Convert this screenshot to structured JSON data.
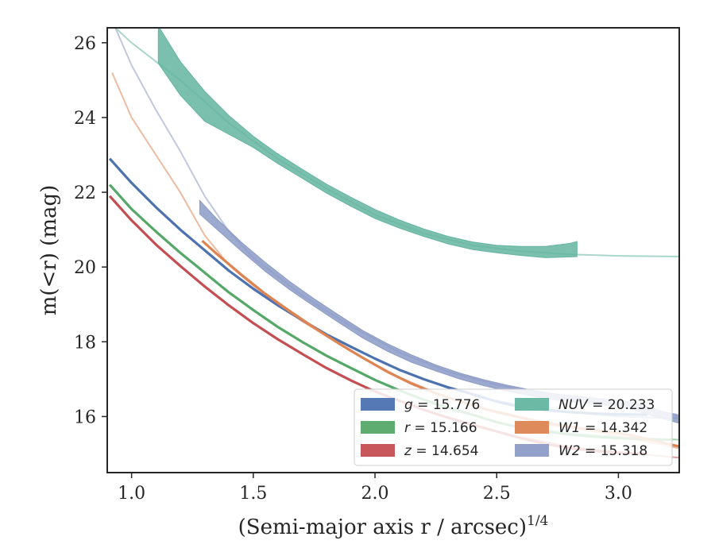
{
  "chart_data": {
    "type": "line",
    "title": "",
    "xlabel": "(Semi-major axis r / arcsec)",
    "xlabel_exponent": "1/4",
    "ylabel": "m(<r) (mag)",
    "xlim": [
      0.9,
      3.25
    ],
    "ylim": [
      26.4,
      14.5
    ],
    "y_inverted": true,
    "x_ticks": [
      1.0,
      1.5,
      2.0,
      2.5,
      3.0
    ],
    "x_tick_labels": [
      "1.0",
      "1.5",
      "2.0",
      "2.5",
      "3.0"
    ],
    "y_ticks": [
      16,
      18,
      20,
      22,
      24,
      26
    ],
    "y_tick_labels": [
      "16",
      "18",
      "20",
      "22",
      "24",
      "26"
    ],
    "grid": false,
    "legend_position": "lower-right",
    "series": [
      {
        "name": "g = 15.776",
        "legend_var": "g",
        "legend_val": "15.776",
        "color": "#4C72B0",
        "data": [
          [
            0.91,
            22.9
          ],
          [
            1.0,
            22.25
          ],
          [
            1.1,
            21.6
          ],
          [
            1.2,
            21.0
          ],
          [
            1.3,
            20.45
          ],
          [
            1.4,
            19.9
          ],
          [
            1.5,
            19.42
          ],
          [
            1.6,
            18.98
          ],
          [
            1.7,
            18.58
          ],
          [
            1.8,
            18.2
          ],
          [
            1.9,
            17.87
          ],
          [
            2.0,
            17.55
          ],
          [
            2.1,
            17.25
          ],
          [
            2.2,
            17.0
          ],
          [
            2.3,
            16.78
          ],
          [
            2.4,
            16.6
          ],
          [
            2.5,
            16.4
          ],
          [
            2.6,
            16.25
          ],
          [
            2.7,
            16.17
          ],
          [
            2.8,
            16.12
          ],
          [
            2.9,
            16.08
          ],
          [
            3.0,
            16.06
          ],
          [
            3.12,
            16.05
          ]
        ],
        "extrap": [
          [
            2.4,
            16.55
          ],
          [
            2.6,
            16.3
          ],
          [
            2.8,
            16.12
          ],
          [
            3.0,
            16.0
          ],
          [
            3.25,
            15.95
          ]
        ]
      },
      {
        "name": "r = 15.166",
        "legend_var": "r",
        "legend_val": "15.166",
        "color": "#55A868",
        "data": [
          [
            0.91,
            22.2
          ],
          [
            1.0,
            21.55
          ],
          [
            1.1,
            20.95
          ],
          [
            1.2,
            20.38
          ],
          [
            1.3,
            19.85
          ],
          [
            1.4,
            19.32
          ],
          [
            1.5,
            18.85
          ],
          [
            1.6,
            18.4
          ],
          [
            1.7,
            18.0
          ],
          [
            1.8,
            17.63
          ],
          [
            1.9,
            17.3
          ],
          [
            2.0,
            16.98
          ],
          [
            2.1,
            16.7
          ],
          [
            2.2,
            16.45
          ],
          [
            2.3,
            16.23
          ],
          [
            2.4,
            16.05
          ],
          [
            2.5,
            15.85
          ],
          [
            2.6,
            15.7
          ],
          [
            2.7,
            15.6
          ],
          [
            2.8,
            15.52
          ],
          [
            2.9,
            15.46
          ],
          [
            3.0,
            15.42
          ],
          [
            3.12,
            15.39
          ],
          [
            3.22,
            15.38
          ]
        ],
        "extrap": [
          [
            2.6,
            15.72
          ],
          [
            2.8,
            15.55
          ],
          [
            3.0,
            15.45
          ],
          [
            3.25,
            15.38
          ]
        ]
      },
      {
        "name": "z = 14.654",
        "legend_var": "z",
        "legend_val": "14.654",
        "color": "#C44E52",
        "data": [
          [
            0.91,
            21.9
          ],
          [
            1.0,
            21.25
          ],
          [
            1.1,
            20.6
          ],
          [
            1.2,
            20.03
          ],
          [
            1.3,
            19.48
          ],
          [
            1.4,
            18.97
          ],
          [
            1.5,
            18.5
          ],
          [
            1.6,
            18.07
          ],
          [
            1.7,
            17.68
          ],
          [
            1.8,
            17.3
          ],
          [
            1.9,
            16.97
          ],
          [
            2.0,
            16.67
          ],
          [
            2.1,
            16.42
          ],
          [
            2.2,
            16.18
          ],
          [
            2.3,
            15.97
          ],
          [
            2.4,
            15.78
          ],
          [
            2.5,
            15.6
          ],
          [
            2.6,
            15.42
          ],
          [
            2.7,
            15.27
          ],
          [
            2.8,
            15.15
          ],
          [
            2.9,
            15.08
          ],
          [
            3.0,
            15.03
          ],
          [
            3.12,
            15.0
          ]
        ],
        "extrap": [
          [
            2.6,
            15.45
          ],
          [
            2.8,
            15.2
          ],
          [
            3.0,
            15.05
          ],
          [
            3.25,
            14.9
          ]
        ]
      },
      {
        "name": "NUV = 20.233",
        "legend_var": "NUV",
        "legend_val": "20.233",
        "color": "#64B5A0",
        "band": true,
        "data": [
          [
            1.11,
            25.95
          ],
          [
            1.2,
            25.05
          ],
          [
            1.3,
            24.3
          ],
          [
            1.4,
            23.8
          ],
          [
            1.5,
            23.35
          ],
          [
            1.6,
            22.9
          ],
          [
            1.7,
            22.5
          ],
          [
            1.8,
            22.1
          ],
          [
            1.9,
            21.75
          ],
          [
            2.0,
            21.42
          ],
          [
            2.1,
            21.15
          ],
          [
            2.2,
            20.92
          ],
          [
            2.3,
            20.72
          ],
          [
            2.4,
            20.57
          ],
          [
            2.5,
            20.48
          ],
          [
            2.6,
            20.43
          ],
          [
            2.7,
            20.4
          ],
          [
            2.8,
            20.45
          ],
          [
            2.83,
            20.48
          ]
        ],
        "halfwidth": [
          0.5,
          0.45,
          0.4,
          0.25,
          0.15,
          0.13,
          0.12,
          0.12,
          0.12,
          0.12,
          0.11,
          0.1,
          0.1,
          0.1,
          0.1,
          0.12,
          0.15,
          0.18,
          0.2
        ],
        "extrap": [
          [
            0.9,
            26.6
          ],
          [
            1.0,
            26.0
          ],
          [
            1.2,
            25.0
          ],
          [
            1.4,
            23.85
          ],
          [
            1.6,
            22.9
          ],
          [
            1.8,
            22.1
          ],
          [
            2.0,
            21.4
          ],
          [
            2.2,
            20.9
          ],
          [
            2.4,
            20.58
          ],
          [
            2.6,
            20.42
          ],
          [
            2.8,
            20.34
          ],
          [
            3.0,
            20.3
          ],
          [
            3.25,
            20.28
          ]
        ]
      },
      {
        "name": "W1 = 14.342",
        "legend_var": "W1",
        "legend_val": "14.342",
        "color": "#DD8452",
        "data": [
          [
            1.29,
            20.7
          ],
          [
            1.35,
            20.35
          ],
          [
            1.45,
            19.8
          ],
          [
            1.55,
            19.28
          ],
          [
            1.65,
            18.82
          ],
          [
            1.75,
            18.38
          ],
          [
            1.85,
            17.96
          ],
          [
            1.95,
            17.57
          ],
          [
            2.05,
            17.2
          ],
          [
            2.15,
            16.88
          ],
          [
            2.25,
            16.62
          ],
          [
            2.35,
            16.4
          ],
          [
            2.45,
            16.2
          ],
          [
            2.55,
            16.05
          ],
          [
            2.65,
            15.9
          ],
          [
            2.75,
            15.78
          ],
          [
            2.85,
            15.68
          ],
          [
            2.95,
            15.6
          ],
          [
            3.05,
            15.5
          ],
          [
            3.15,
            15.35
          ],
          [
            3.25,
            15.2
          ]
        ],
        "extrap": [
          [
            0.92,
            25.2
          ],
          [
            1.0,
            24.0
          ],
          [
            1.1,
            23.0
          ],
          [
            1.2,
            22.0
          ],
          [
            1.3,
            20.85
          ],
          [
            1.4,
            20.05
          ],
          [
            1.5,
            19.5
          ],
          [
            1.7,
            18.55
          ],
          [
            1.9,
            17.75
          ],
          [
            2.1,
            17.05
          ],
          [
            2.3,
            16.5
          ],
          [
            2.5,
            16.1
          ],
          [
            2.7,
            15.8
          ],
          [
            2.9,
            15.6
          ],
          [
            3.1,
            15.35
          ],
          [
            3.25,
            15.15
          ]
        ]
      },
      {
        "name": "W2 = 15.318",
        "legend_var": "W2",
        "legend_val": "15.318",
        "color": "#8C9BC7",
        "band": true,
        "data": [
          [
            1.28,
            21.6
          ],
          [
            1.35,
            21.15
          ],
          [
            1.45,
            20.55
          ],
          [
            1.55,
            20.0
          ],
          [
            1.65,
            19.5
          ],
          [
            1.75,
            19.05
          ],
          [
            1.85,
            18.62
          ],
          [
            1.95,
            18.2
          ],
          [
            2.05,
            17.85
          ],
          [
            2.15,
            17.55
          ],
          [
            2.25,
            17.3
          ],
          [
            2.35,
            17.08
          ],
          [
            2.45,
            16.9
          ],
          [
            2.55,
            16.75
          ],
          [
            2.65,
            16.62
          ],
          [
            2.75,
            16.52
          ],
          [
            2.85,
            16.45
          ],
          [
            2.95,
            16.38
          ],
          [
            3.05,
            16.3
          ],
          [
            3.15,
            16.1
          ],
          [
            3.25,
            15.92
          ]
        ],
        "halfwidth": [
          0.18,
          0.14,
          0.12,
          0.12,
          0.11,
          0.1,
          0.1,
          0.1,
          0.1,
          0.1,
          0.08,
          0.08,
          0.08,
          0.08,
          0.08,
          0.08,
          0.08,
          0.08,
          0.1,
          0.1,
          0.1
        ],
        "extrap": [
          [
            0.92,
            26.6
          ],
          [
            1.0,
            25.4
          ],
          [
            1.1,
            24.2
          ],
          [
            1.2,
            23.1
          ],
          [
            1.3,
            21.9
          ],
          [
            1.4,
            20.95
          ],
          [
            1.5,
            20.25
          ],
          [
            1.7,
            19.25
          ],
          [
            1.9,
            18.42
          ],
          [
            2.1,
            17.72
          ],
          [
            2.3,
            17.2
          ],
          [
            2.5,
            16.85
          ],
          [
            2.7,
            16.58
          ],
          [
            2.9,
            16.4
          ],
          [
            3.1,
            16.2
          ],
          [
            3.25,
            16.05
          ]
        ]
      }
    ]
  }
}
